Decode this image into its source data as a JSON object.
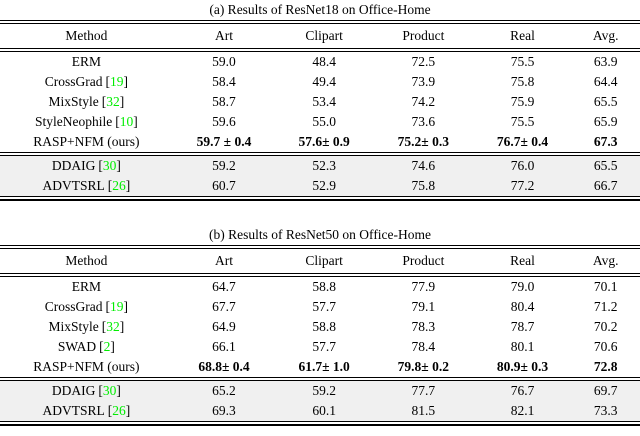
{
  "colors": {
    "citation_link": "#00ee00",
    "shaded_row_bg": "#f0f0f0",
    "rule": "#000000",
    "text": "#000000",
    "background": "#ffffff"
  },
  "punct": {
    "cite_open": "[",
    "cite_close": "]"
  },
  "tables": [
    {
      "caption": "(a) Results of ResNet18 on Office-Home",
      "columns": [
        "Method",
        "Art",
        "Clipart",
        "Product",
        "Real",
        "Avg."
      ],
      "rows": [
        {
          "method": "ERM",
          "cite": "",
          "bold": false,
          "shaded": false,
          "values": [
            "59.0",
            "48.4",
            "72.5",
            "75.5",
            "63.9"
          ]
        },
        {
          "method": "CrossGrad",
          "cite": "19",
          "bold": false,
          "shaded": false,
          "values": [
            "58.4",
            "49.4",
            "73.9",
            "75.8",
            "64.4"
          ]
        },
        {
          "method": "MixStyle",
          "cite": "32",
          "bold": false,
          "shaded": false,
          "values": [
            "58.7",
            "53.4",
            "74.2",
            "75.9",
            "65.5"
          ]
        },
        {
          "method": "StyleNeophile",
          "cite": "10",
          "bold": false,
          "shaded": false,
          "values": [
            "59.6",
            "55.0",
            "73.6",
            "75.5",
            "65.9"
          ]
        },
        {
          "method": "RASP+NFM (ours)",
          "cite": "",
          "bold": true,
          "shaded": false,
          "values": [
            "59.7 ± 0.4",
            "57.6± 0.9",
            "75.2± 0.3",
            "76.7± 0.4",
            "67.3"
          ]
        },
        {
          "method": "DDAIG",
          "cite": "30",
          "bold": false,
          "shaded": true,
          "values": [
            "59.2",
            "52.3",
            "74.6",
            "76.0",
            "65.5"
          ]
        },
        {
          "method": "ADVTSRL",
          "cite": "26",
          "bold": false,
          "shaded": true,
          "values": [
            "60.7",
            "52.9",
            "75.8",
            "77.2",
            "66.7"
          ]
        }
      ]
    },
    {
      "caption": "(b) Results of ResNet50 on Office-Home",
      "columns": [
        "Method",
        "Art",
        "Clipart",
        "Product",
        "Real",
        "Avg."
      ],
      "rows": [
        {
          "method": "ERM",
          "cite": "",
          "bold": false,
          "shaded": false,
          "values": [
            "64.7",
            "58.8",
            "77.9",
            "79.0",
            "70.1"
          ]
        },
        {
          "method": "CrossGrad",
          "cite": "19",
          "bold": false,
          "shaded": false,
          "values": [
            "67.7",
            "57.7",
            "79.1",
            "80.4",
            "71.2"
          ]
        },
        {
          "method": "MixStyle",
          "cite": "32",
          "bold": false,
          "shaded": false,
          "values": [
            "64.9",
            "58.8",
            "78.3",
            "78.7",
            "70.2"
          ]
        },
        {
          "method": "SWAD",
          "cite": "2",
          "bold": false,
          "shaded": false,
          "values": [
            "66.1",
            "57.7",
            "78.4",
            "80.1",
            "70.6"
          ]
        },
        {
          "method": "RASP+NFM (ours)",
          "cite": "",
          "bold": true,
          "shaded": false,
          "values": [
            "68.8± 0.4",
            "61.7± 1.0",
            "79.8± 0.2",
            "80.9± 0.3",
            "72.8"
          ]
        },
        {
          "method": "DDAIG",
          "cite": "30",
          "bold": false,
          "shaded": true,
          "values": [
            "65.2",
            "59.2",
            "77.7",
            "76.7",
            "69.7"
          ]
        },
        {
          "method": "ADVTSRL",
          "cite": "26",
          "bold": false,
          "shaded": true,
          "values": [
            "69.3",
            "60.1",
            "81.5",
            "82.1",
            "73.3"
          ]
        }
      ]
    }
  ]
}
